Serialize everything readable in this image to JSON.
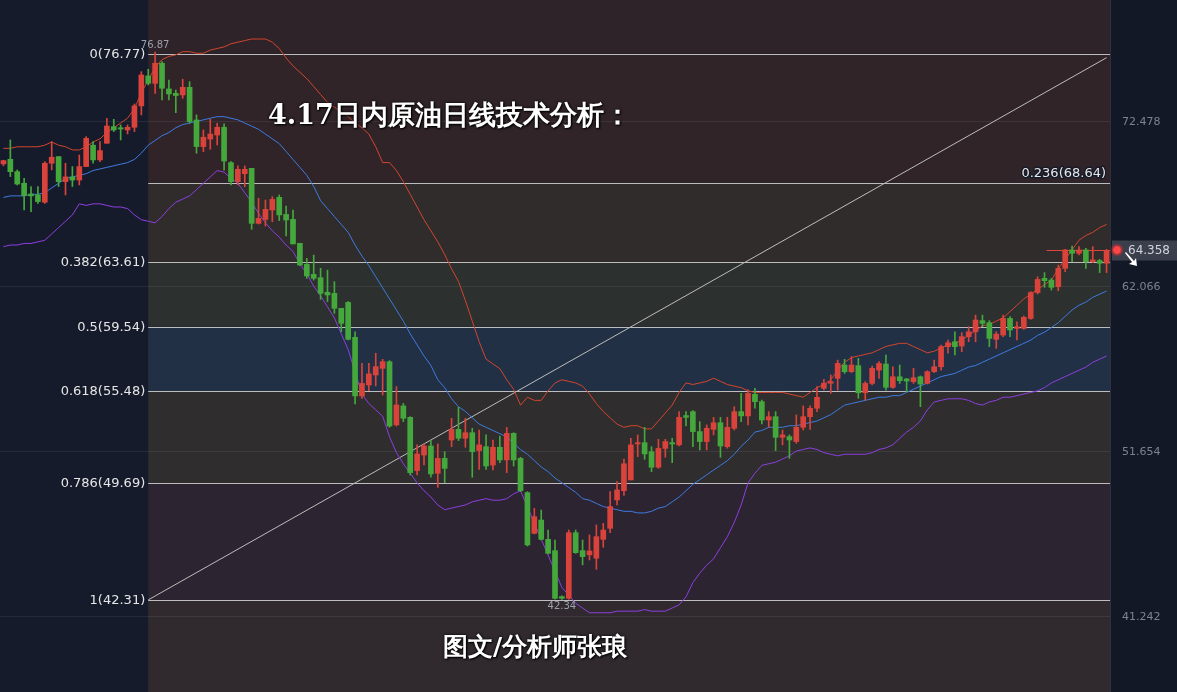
{
  "chart_data": {
    "type": "candlestick",
    "title": "4.17日内原油日线技术分析：",
    "subtitle": "图文/分析师张琅",
    "categories": [
      null,
      null,
      null,
      null,
      null,
      null,
      null,
      null,
      null,
      null,
      null,
      null,
      null,
      null,
      null,
      null,
      null,
      null,
      null,
      null,
      null,
      null,
      null,
      null,
      null,
      null,
      null,
      null,
      null,
      null,
      null,
      null,
      null,
      null,
      null,
      null,
      null,
      null,
      null,
      null,
      null,
      null,
      null,
      null,
      null,
      null,
      null,
      null,
      null,
      null,
      null,
      null,
      null,
      null,
      null,
      null,
      null,
      null,
      null,
      null,
      null,
      null,
      null,
      null,
      null,
      null,
      null,
      null,
      null,
      null,
      null,
      null,
      null,
      null,
      null,
      null,
      null,
      null,
      null,
      null,
      null,
      null,
      null,
      null,
      null,
      null,
      null,
      null,
      null,
      null,
      null,
      null,
      null,
      null,
      null,
      null,
      null,
      null,
      null,
      null,
      null,
      null,
      null,
      null,
      null,
      null,
      null,
      null,
      null,
      null,
      null,
      null,
      null,
      null,
      null,
      null,
      null,
      null,
      null,
      null,
      null,
      null,
      null,
      null,
      null,
      null,
      null,
      null,
      null,
      null,
      null,
      null,
      null,
      null,
      null,
      null,
      null,
      null,
      null,
      null,
      null,
      null,
      null,
      null,
      null,
      null,
      null,
      null,
      null,
      null,
      null,
      null,
      null,
      null,
      null,
      null,
      null,
      null,
      null,
      null,
      null
    ],
    "ohlc": [
      [
        69.82,
        70.05,
        69.7,
        70.03
      ],
      [
        70.11,
        71.33,
        69.02,
        69.33
      ],
      [
        69.33,
        69.44,
        68.49,
        68.55
      ],
      [
        68.6,
        68.91,
        66.91,
        67.82
      ],
      [
        67.92,
        68.39,
        66.81,
        67.8
      ],
      [
        67.86,
        68.39,
        67.33,
        67.44
      ],
      [
        67.4,
        69.96,
        67.33,
        69.86
      ],
      [
        69.86,
        71.22,
        69.44,
        70.24
      ],
      [
        70.28,
        70.28,
        68.39,
        68.7
      ],
      [
        68.7,
        69.86,
        67.86,
        69.0
      ],
      [
        69.0,
        69.65,
        68.39,
        68.8
      ],
      [
        68.8,
        70.38,
        68.49,
        69.65
      ],
      [
        69.65,
        71.54,
        69.65,
        71.43
      ],
      [
        71.0,
        71.22,
        69.86,
        70.07
      ],
      [
        70.07,
        71.22,
        69.96,
        70.66
      ],
      [
        71.12,
        72.7,
        71.12,
        72.21
      ],
      [
        72.17,
        72.63,
        71.86,
        71.96
      ],
      [
        72.1,
        72.28,
        71.33,
        72.02
      ],
      [
        71.96,
        72.28,
        71.71,
        72.13
      ],
      [
        72.13,
        73.6,
        71.86,
        73.48
      ],
      [
        73.48,
        75.64,
        72.91,
        75.43
      ],
      [
        75.37,
        75.79,
        74.8,
        74.9
      ],
      [
        74.9,
        76.87,
        74.27,
        76.17
      ],
      [
        76.17,
        76.27,
        73.85,
        74.59
      ],
      [
        74.55,
        75.11,
        73.85,
        74.23
      ],
      [
        74.27,
        74.48,
        73.05,
        74.13
      ],
      [
        74.17,
        75.16,
        73.96,
        74.65
      ],
      [
        74.65,
        75.01,
        72.38,
        72.49
      ],
      [
        72.59,
        72.91,
        70.49,
        70.91
      ],
      [
        70.91,
        71.96,
        70.59,
        71.5
      ],
      [
        71.39,
        72.63,
        70.74,
        71.7
      ],
      [
        71.64,
        72.38,
        71.01,
        72.13
      ],
      [
        72.13,
        72.34,
        69.43,
        70.0
      ],
      [
        69.9,
        69.96,
        68.49,
        68.7
      ],
      [
        68.7,
        69.69,
        68.49,
        69.48
      ],
      [
        69.2,
        69.69,
        68.38,
        69.48
      ],
      [
        69.54,
        69.54,
        65.69,
        66.07
      ],
      [
        66.07,
        67.65,
        66.03,
        66.38
      ],
      [
        66.32,
        67.54,
        65.9,
        66.95
      ],
      [
        66.91,
        67.75,
        66.17,
        67.58
      ],
      [
        67.71,
        67.86,
        66.24,
        66.6
      ],
      [
        66.63,
        67.16,
        65.27,
        66.28
      ],
      [
        66.32,
        66.91,
        64.77,
        64.77
      ],
      [
        64.81,
        64.81,
        63.4,
        63.44
      ],
      [
        63.48,
        63.86,
        62.6,
        62.75
      ],
      [
        62.85,
        64.07,
        62.49,
        62.6
      ],
      [
        62.64,
        63.23,
        61.27,
        61.65
      ],
      [
        61.72,
        63.12,
        61.13,
        61.55
      ],
      [
        61.65,
        62.39,
        60.39,
        60.71
      ],
      [
        60.71,
        60.71,
        59.23,
        59.76
      ],
      [
        61.08,
        61.13,
        58.71,
        58.75
      ],
      [
        58.88,
        59.23,
        54.67,
        55.18
      ],
      [
        55.18,
        57.24,
        55.03,
        55.97
      ],
      [
        55.87,
        57.24,
        55.51,
        56.57
      ],
      [
        56.5,
        57.87,
        55.81,
        57.03
      ],
      [
        56.92,
        57.49,
        55.24,
        57.34
      ],
      [
        57.34,
        57.41,
        53.2,
        53.28
      ],
      [
        53.35,
        55.77,
        53.28,
        54.61
      ],
      [
        54.55,
        54.71,
        53.56,
        53.77
      ],
      [
        53.83,
        53.87,
        50.19,
        50.34
      ],
      [
        50.47,
        52.09,
        50.19,
        51.52
      ],
      [
        51.45,
        52.15,
        50.82,
        52.02
      ],
      [
        52.02,
        52.36,
        50.05,
        50.26
      ],
      [
        50.3,
        52.15,
        49.41,
        51.24
      ],
      [
        51.24,
        51.66,
        49.71,
        50.61
      ],
      [
        52.4,
        53.77,
        51.98,
        53.07
      ],
      [
        53.07,
        54.46,
        52.36,
        52.51
      ],
      [
        52.51,
        53.77,
        51.94,
        52.86
      ],
      [
        52.86,
        53.14,
        50.05,
        51.66
      ],
      [
        51.73,
        53.03,
        50.55,
        52.09
      ],
      [
        51.98,
        52.72,
        50.55,
        50.76
      ],
      [
        50.82,
        52.4,
        50.51,
        51.94
      ],
      [
        51.94,
        52.65,
        50.97,
        51.14
      ],
      [
        51.14,
        53.2,
        50.34,
        52.82
      ],
      [
        52.82,
        52.86,
        50.76,
        51.14
      ],
      [
        51.24,
        51.31,
        49.14,
        49.2
      ],
      [
        49.08,
        49.14,
        45.71,
        45.78
      ],
      [
        46.51,
        48.09,
        46.47,
        47.56
      ],
      [
        47.35,
        47.98,
        46.09,
        46.13
      ],
      [
        46.13,
        46.72,
        45.21,
        45.25
      ],
      [
        45.42,
        46.09,
        42.35,
        42.41
      ],
      [
        42.52,
        42.56,
        42.34,
        42.41
      ],
      [
        42.41,
        46.72,
        42.35,
        46.55
      ],
      [
        46.55,
        46.72,
        45.25,
        45.29
      ],
      [
        45.42,
        46.09,
        44.52,
        45.04
      ],
      [
        45.15,
        46.41,
        44.83,
        45.4
      ],
      [
        44.94,
        47.04,
        44.24,
        46.3
      ],
      [
        46.13,
        47.14,
        45.63,
        46.72
      ],
      [
        46.83,
        49.14,
        46.55,
        48.2
      ],
      [
        48.62,
        49.77,
        48.3,
        49.25
      ],
      [
        49.2,
        51.2,
        48.9,
        50.9
      ],
      [
        49.88,
        52.51,
        49.88,
        52.09
      ],
      [
        52.15,
        52.72,
        51.35,
        52.23
      ],
      [
        52.23,
        53.2,
        51.18,
        51.52
      ],
      [
        51.66,
        51.98,
        50.4,
        50.68
      ],
      [
        50.68,
        52.44,
        50.61,
        51.87
      ],
      [
        51.87,
        52.44,
        51.31,
        52.3
      ],
      [
        52.23,
        52.51,
        50.97,
        52.15
      ],
      [
        52.09,
        54.19,
        52.02,
        53.83
      ],
      [
        53.94,
        54.19,
        53.28,
        53.83
      ],
      [
        54.19,
        54.25,
        51.98,
        52.93
      ],
      [
        52.93,
        53.56,
        51.77,
        52.3
      ],
      [
        52.3,
        53.35,
        51.77,
        53.14
      ],
      [
        53.07,
        53.83,
        52.72,
        53.49
      ],
      [
        53.49,
        53.83,
        51.31,
        52.02
      ],
      [
        51.98,
        53.83,
        51.88,
        53.2
      ],
      [
        53.14,
        54.5,
        53.03,
        54.19
      ],
      [
        54.19,
        55.34,
        53.56,
        53.92
      ],
      [
        53.92,
        55.56,
        53.35,
        55.34
      ],
      [
        55.28,
        55.66,
        54.4,
        54.82
      ],
      [
        54.82,
        54.92,
        53.41,
        53.66
      ],
      [
        53.66,
        54.19,
        53.2,
        53.87
      ],
      [
        53.87,
        54.19,
        51.73,
        52.57
      ],
      [
        52.57,
        53.03,
        52.09,
        52.72
      ],
      [
        52.61,
        52.72,
        51.24,
        52.4
      ],
      [
        52.3,
        53.98,
        52.19,
        53.2
      ],
      [
        53.2,
        54.55,
        53.03,
        53.87
      ],
      [
        53.87,
        54.55,
        53.07,
        54.4
      ],
      [
        54.4,
        55.77,
        54.19,
        55.09
      ],
      [
        55.66,
        56.23,
        55.56,
        55.98
      ],
      [
        55.98,
        56.5,
        55.34,
        56.08
      ],
      [
        56.29,
        57.44,
        55.55,
        57.23
      ],
      [
        57.13,
        57.49,
        56.6,
        56.71
      ],
      [
        56.71,
        57.65,
        56.65,
        57.13
      ],
      [
        57.09,
        57.55,
        55.03,
        55.38
      ],
      [
        55.38,
        56.08,
        54.92,
        55.97
      ],
      [
        55.97,
        57.07,
        55.87,
        56.92
      ],
      [
        56.81,
        57.34,
        56.29,
        57.23
      ],
      [
        57.19,
        57.76,
        55.55,
        55.72
      ],
      [
        55.72,
        57.02,
        55.66,
        56.39
      ],
      [
        56.39,
        57.13,
        55.97,
        56.14
      ],
      [
        56.25,
        56.29,
        55.45,
        56.12
      ],
      [
        56.08,
        56.92,
        55.97,
        56.33
      ],
      [
        56.39,
        56.44,
        54.5,
        55.93
      ],
      [
        55.97,
        56.77,
        55.93,
        56.71
      ],
      [
        56.71,
        57.44,
        56.65,
        57.02
      ],
      [
        57.02,
        58.39,
        56.81,
        58.29
      ],
      [
        58.29,
        58.71,
        57.87,
        58.54
      ],
      [
        58.6,
        59.23,
        57.76,
        58.29
      ],
      [
        58.33,
        59.17,
        57.97,
        58.92
      ],
      [
        58.92,
        59.55,
        58.6,
        59.23
      ],
      [
        59.23,
        60.28,
        58.6,
        59.97
      ],
      [
        59.93,
        60.28,
        59.55,
        59.76
      ],
      [
        59.8,
        59.93,
        58.29,
        58.81
      ],
      [
        58.75,
        59.23,
        58.18,
        59.08
      ],
      [
        59.02,
        60.28,
        58.92,
        60.07
      ],
      [
        60.07,
        60.18,
        58.92,
        59.34
      ],
      [
        59.44,
        59.86,
        58.71,
        59.55
      ],
      [
        59.44,
        60.22,
        59.38,
        60.14
      ],
      [
        60.07,
        61.76,
        60.01,
        61.7
      ],
      [
        61.7,
        62.7,
        61.61,
        62.53
      ],
      [
        62.6,
        62.96,
        62.03,
        62.45
      ],
      [
        62.49,
        62.6,
        61.86,
        62.03
      ],
      [
        62.07,
        63.44,
        61.82,
        63.23
      ],
      [
        63.23,
        64.43,
        63.02,
        64.39
      ],
      [
        64.39,
        64.64,
        63.65,
        64.18
      ],
      [
        64.18,
        64.6,
        64.07,
        64.39
      ],
      [
        64.39,
        64.49,
        63.23,
        63.65
      ],
      [
        63.65,
        64.6,
        63.59,
        63.76
      ],
      [
        63.72,
        63.8,
        62.96,
        63.55
      ],
      [
        63.55,
        64.43,
        62.96,
        64.358
      ]
    ],
    "colors": [
      "#d9433b",
      "#45a83c",
      "#45a83c",
      "#45a83c",
      "#45a83c",
      "#45a83c",
      "#d9433b",
      "#d9433b",
      "#45a83c",
      "#d9433b",
      "#45a83c",
      "#d9433b",
      "#d9433b",
      "#45a83c",
      "#d9433b",
      "#d9433b",
      "#45a83c",
      "#45a83c",
      "#d9433b",
      "#d9433b",
      "#d9433b",
      "#45a83c",
      "#d9433b",
      "#45a83c",
      "#45a83c",
      "#45a83c",
      "#d9433b",
      "#45a83c",
      "#45a83c",
      "#d9433b",
      "#d9433b",
      "#d9433b",
      "#45a83c",
      "#45a83c",
      "#d9433b",
      "#d9433b",
      "#45a83c",
      "#d9433b",
      "#d9433b",
      "#d9433b",
      "#45a83c",
      "#45a83c",
      "#45a83c",
      "#45a83c",
      "#45a83c",
      "#45a83c",
      "#45a83c",
      "#45a83c",
      "#45a83c",
      "#45a83c",
      "#45a83c",
      "#45a83c",
      "#d9433b",
      "#d9433b",
      "#d9433b",
      "#d9433b",
      "#45a83c",
      "#d9433b",
      "#45a83c",
      "#45a83c",
      "#d9433b",
      "#d9433b",
      "#45a83c",
      "#d9433b",
      "#45a83c",
      "#d9433b",
      "#45a83c",
      "#d9433b",
      "#45a83c",
      "#d9433b",
      "#45a83c",
      "#d9433b",
      "#45a83c",
      "#d9433b",
      "#45a83c",
      "#45a83c",
      "#45a83c",
      "#d9433b",
      "#45a83c",
      "#45a83c",
      "#45a83c",
      "#45a83c",
      "#d9433b",
      "#45a83c",
      "#45a83c",
      "#d9433b",
      "#d9433b",
      "#d9433b",
      "#d9433b",
      "#d9433b",
      "#d9433b",
      "#d9433b",
      "#d9433b",
      "#45a83c",
      "#45a83c",
      "#d9433b",
      "#d9433b",
      "#45a83c",
      "#d9433b",
      "#45a83c",
      "#45a83c",
      "#45a83c",
      "#d9433b",
      "#d9433b",
      "#45a83c",
      "#d9433b",
      "#d9433b",
      "#45a83c",
      "#d9433b",
      "#45a83c",
      "#45a83c",
      "#d9433b",
      "#45a83c",
      "#d9433b",
      "#45a83c",
      "#d9433b",
      "#d9433b",
      "#d9433b",
      "#d9433b",
      "#d9433b",
      "#d9433b",
      "#d9433b",
      "#45a83c",
      "#d9433b",
      "#45a83c",
      "#d9433b",
      "#d9433b",
      "#d9433b",
      "#45a83c",
      "#d9433b",
      "#45a83c",
      "#45a83c",
      "#d9433b",
      "#45a83c",
      "#d9433b",
      "#d9433b",
      "#d9433b",
      "#d9433b",
      "#45a83c",
      "#d9433b",
      "#d9433b",
      "#d9433b",
      "#45a83c",
      "#45a83c",
      "#d9433b",
      "#d9433b",
      "#45a83c",
      "#d9433b",
      "#d9433b",
      "#d9433b",
      "#d9433b",
      "#45a83c",
      "#45a83c",
      "#d9433b",
      "#d9433b",
      "#45a83c",
      "#d9433b",
      "#45a83c",
      "#d9433b",
      "#45a83c",
      "#d9433b"
    ],
    "series": [
      {
        "type": "line",
        "color": "#d2452e",
        "values": [
          70.8,
          70.8,
          70.9,
          70.9,
          70.9,
          70.9,
          71.0,
          71.2,
          71.0,
          70.9,
          70.7,
          70.7,
          70.9,
          71.2,
          71.4,
          71.8,
          72.1,
          72.4,
          72.7,
          73.3,
          74.3,
          75.1,
          75.9,
          76.4,
          76.6,
          76.7,
          76.9,
          76.9,
          76.8,
          76.8,
          77.0,
          77.1,
          77.2,
          77.4,
          77.5,
          77.6,
          77.7,
          77.7,
          77.7,
          77.5,
          77.1,
          76.5,
          76.0,
          75.6,
          75.2,
          74.7,
          74.2,
          73.7,
          73.4,
          73.1,
          72.8,
          72.4,
          72.1,
          71.7,
          70.9,
          69.9,
          69.9,
          69.4,
          68.7,
          67.9,
          67.1,
          66.3,
          65.6,
          64.9,
          64.1,
          63.2,
          62.4,
          61.2,
          59.9,
          58.6,
          57.5,
          57.2,
          56.9,
          56.2,
          55.6,
          54.6,
          55.1,
          54.9,
          54.9,
          55.5,
          56.0,
          56.2,
          56.1,
          56.0,
          55.8,
          55.3,
          54.7,
          54.2,
          53.8,
          53.4,
          53.2,
          53.3,
          53.3,
          53.1,
          53.1,
          53.6,
          54.1,
          54.6,
          55.4,
          56.0,
          55.9,
          56.0,
          56.1,
          56.3,
          56.1,
          55.9,
          55.8,
          55.7,
          55.5,
          55.4,
          55.4,
          55.4,
          55.4,
          55.4,
          55.3,
          55.2,
          55.1,
          55.4,
          55.7,
          55.9,
          56.2,
          56.8,
          57.3,
          57.6,
          57.7,
          57.8,
          57.9,
          58.1,
          58.3,
          58.4,
          58.5,
          58.5,
          58.3,
          58.1,
          57.9,
          58.0,
          58.2,
          58.4,
          58.5,
          58.7,
          59.0,
          59.3,
          59.6,
          59.7,
          59.9,
          60.1,
          60.5,
          60.9,
          61.3,
          61.6,
          61.9,
          62.2,
          62.5,
          63.2,
          63.8,
          64.4,
          65.0,
          65.3,
          65.5,
          65.8,
          66.0
        ]
      },
      {
        "type": "line",
        "color": "#3d7be0",
        "values": [
          67.7,
          67.8,
          67.8,
          67.8,
          67.9,
          67.9,
          68.0,
          68.3,
          68.6,
          68.9,
          69.0,
          69.1,
          69.2,
          69.4,
          69.5,
          69.6,
          69.7,
          69.8,
          69.9,
          70.1,
          70.5,
          71.0,
          71.3,
          71.6,
          71.8,
          72.1,
          72.3,
          72.4,
          72.5,
          72.6,
          72.7,
          72.8,
          72.8,
          72.7,
          72.6,
          72.4,
          72.2,
          72.0,
          71.7,
          71.4,
          71.1,
          70.6,
          70.1,
          69.6,
          69.1,
          68.4,
          67.5,
          67.0,
          66.5,
          66.0,
          65.5,
          64.7,
          64.0,
          63.4,
          62.7,
          62.0,
          61.3,
          60.6,
          59.9,
          59.1,
          58.4,
          57.7,
          57.1,
          56.2,
          55.7,
          55.0,
          54.5,
          54.2,
          53.8,
          53.4,
          53.2,
          53.0,
          52.8,
          52.6,
          52.2,
          51.8,
          51.5,
          51.1,
          50.7,
          50.4,
          50.0,
          49.7,
          49.4,
          49.1,
          48.7,
          48.6,
          48.4,
          48.2,
          48.1,
          48.0,
          47.9,
          47.9,
          47.8,
          47.8,
          47.9,
          48.1,
          48.2,
          48.5,
          48.8,
          49.2,
          49.6,
          49.9,
          50.2,
          50.5,
          50.8,
          51.1,
          51.5,
          52.0,
          52.4,
          52.9,
          53.0,
          53.2,
          53.2,
          53.2,
          53.3,
          53.3,
          53.4,
          53.5,
          53.6,
          53.8,
          54.0,
          54.3,
          54.6,
          54.7,
          54.8,
          54.9,
          55.0,
          55.1,
          55.1,
          55.2,
          55.2,
          55.4,
          55.6,
          55.8,
          56.0,
          56.2,
          56.4,
          56.5,
          56.6,
          56.8,
          57.0,
          57.1,
          57.3,
          57.5,
          57.7,
          57.9,
          58.1,
          58.3,
          58.5,
          58.7,
          59.0,
          59.2,
          59.5,
          59.8,
          60.2,
          60.6,
          60.9,
          61.1,
          61.4,
          61.6,
          61.8
        ]
      },
      {
        "type": "line",
        "color": "#8d3fe0",
        "values": [
          64.6,
          64.7,
          64.7,
          64.8,
          64.8,
          64.9,
          65.0,
          65.4,
          65.8,
          66.2,
          66.6,
          67.3,
          67.2,
          67.3,
          67.3,
          67.2,
          67.1,
          67.1,
          67.0,
          66.6,
          66.3,
          66.2,
          66.1,
          66.5,
          67.0,
          67.4,
          67.6,
          67.8,
          68.2,
          68.6,
          69.0,
          69.4,
          69.3,
          68.9,
          68.6,
          68.0,
          67.4,
          66.7,
          66.1,
          65.6,
          65.2,
          64.7,
          64.3,
          63.5,
          62.9,
          62.1,
          61.5,
          60.8,
          60.1,
          59.1,
          58.1,
          null,
          55.3,
          54.7,
          54.3,
          53.9,
          52.6,
          51.6,
          50.9,
          50.3,
          49.7,
          49.2,
          48.8,
          48.3,
          48.0,
          48.1,
          48.2,
          48.3,
          48.5,
          48.6,
          48.7,
          48.6,
          48.6,
          48.7,
          49.0,
          49.2,
          null,
          null,
          null,
          null,
          null,
          43.1,
          42.6,
          42.1,
          41.8,
          41.5,
          41.5,
          41.5,
          41.5,
          41.6,
          41.6,
          41.6,
          41.6,
          41.7,
          41.6,
          41.6,
          41.6,
          41.8,
          42.0,
          42.5,
          43.4,
          44.0,
          44.5,
          44.9,
          45.6,
          46.3,
          47.2,
          48.3,
          49.7,
          50.3,
          50.8,
          50.9,
          51.0,
          51.2,
          51.4,
          51.7,
          51.8,
          51.9,
          51.8,
          51.6,
          51.5,
          51.4,
          51.5,
          51.5,
          51.5,
          51.5,
          51.6,
          51.8,
          51.9,
          52.1,
          52.5,
          52.9,
          53.2,
          53.6,
          54.3,
          54.8,
          54.9,
          55.0,
          55.0,
          55.0,
          54.9,
          54.7,
          54.6,
          54.8,
          54.9,
          55.1,
          55.1,
          55.2,
          55.3,
          55.4,
          55.5,
          55.7,
          56.0,
          56.2,
          56.4,
          56.6,
          56.8,
          57.0,
          57.3,
          57.5,
          57.7
        ]
      },
      {
        "type": "line",
        "color": "#bdbdbd",
        "values": [
          null,
          null,
          null,
          null,
          null,
          null,
          null,
          null,
          null,
          null,
          null,
          null,
          null,
          null,
          null,
          null,
          null,
          null,
          null,
          null,
          null,
          42.31,
          null,
          null,
          null,
          null,
          null,
          null,
          null,
          null,
          null,
          null,
          null,
          null,
          null,
          null,
          null,
          null,
          null,
          null,
          null,
          null,
          null,
          null,
          null,
          null,
          null,
          null,
          null,
          null,
          null,
          null,
          null,
          null,
          null,
          null,
          null,
          null,
          null,
          null,
          null,
          null,
          null,
          null,
          null,
          null,
          null,
          null,
          null,
          null,
          null,
          null,
          null,
          null,
          null,
          null,
          null,
          null,
          null,
          null,
          null,
          null,
          null,
          null,
          null,
          null,
          null,
          null,
          null,
          null,
          null,
          null,
          null,
          null,
          null,
          null,
          null,
          null,
          null,
          null,
          null,
          null,
          null,
          null,
          null,
          null,
          null,
          null,
          null,
          null,
          null,
          null,
          null,
          null,
          null,
          null,
          null,
          null,
          null,
          null,
          null,
          null,
          null,
          null,
          null,
          null,
          null,
          null,
          null,
          null,
          null,
          null,
          null,
          null,
          null,
          null,
          null,
          null,
          null,
          null,
          null,
          null,
          null,
          null,
          null,
          null,
          null,
          null,
          null,
          null,
          null,
          null,
          null,
          null,
          null,
          null,
          null,
          null,
          null,
          null,
          76.52
        ]
      }
    ],
    "ylim": [
      36.5,
      80.16
    ],
    "yticks": [
      41.242,
      51.654,
      62.066,
      72.478
    ],
    "grid": "y",
    "tick_labels": "y",
    "ref_lines": [
      {
        "axis": "y",
        "value": 76.77,
        "label": "0(76.77)",
        "color": "#bdbdbd"
      },
      {
        "axis": "y",
        "value": 68.64,
        "label": "0.236(68.64)",
        "color": "#bdbdbd"
      },
      {
        "axis": "y",
        "value": 63.61,
        "label": "0.382(63.61)",
        "color": "#bdbdbd"
      },
      {
        "axis": "y",
        "value": 59.54,
        "label": "0.5(59.54)",
        "color": "#bdbdbd"
      },
      {
        "axis": "y",
        "value": 55.48,
        "label": "0.618(55.48)",
        "color": "#bdbdbd"
      },
      {
        "axis": "y",
        "value": 49.69,
        "label": "0.786(49.69)",
        "color": "#bdbdbd"
      },
      {
        "axis": "y",
        "value": 42.31,
        "label": "1(42.31)",
        "color": "#bdbdbd"
      }
    ],
    "bands": [
      {
        "axis": "y",
        "from": 76.77,
        "to": 80.16,
        "color": "#2e2329"
      },
      {
        "axis": "y",
        "from": 68.64,
        "to": 76.77,
        "color": "#302429"
      },
      {
        "axis": "y",
        "from": 63.61,
        "to": 68.64,
        "color": "#302c2c"
      },
      {
        "axis": "y",
        "from": 59.54,
        "to": 63.61,
        "color": "#2c302f"
      },
      {
        "axis": "y",
        "from": 55.48,
        "to": 59.54,
        "color": "#223045"
      },
      {
        "axis": "y",
        "from": 49.69,
        "to": 55.48,
        "color": "#2f2d2e"
      },
      {
        "axis": "y",
        "from": 42.31,
        "to": 49.69,
        "color": "#2c2430"
      },
      {
        "axis": "y",
        "from": 36.5,
        "to": 42.31,
        "color": "#302a2f"
      }
    ],
    "annotations": [
      {
        "text": "76.87",
        "y": 76.87
      },
      {
        "text": "42.34",
        "y": 42.34
      },
      "64.358"
    ]
  }
}
